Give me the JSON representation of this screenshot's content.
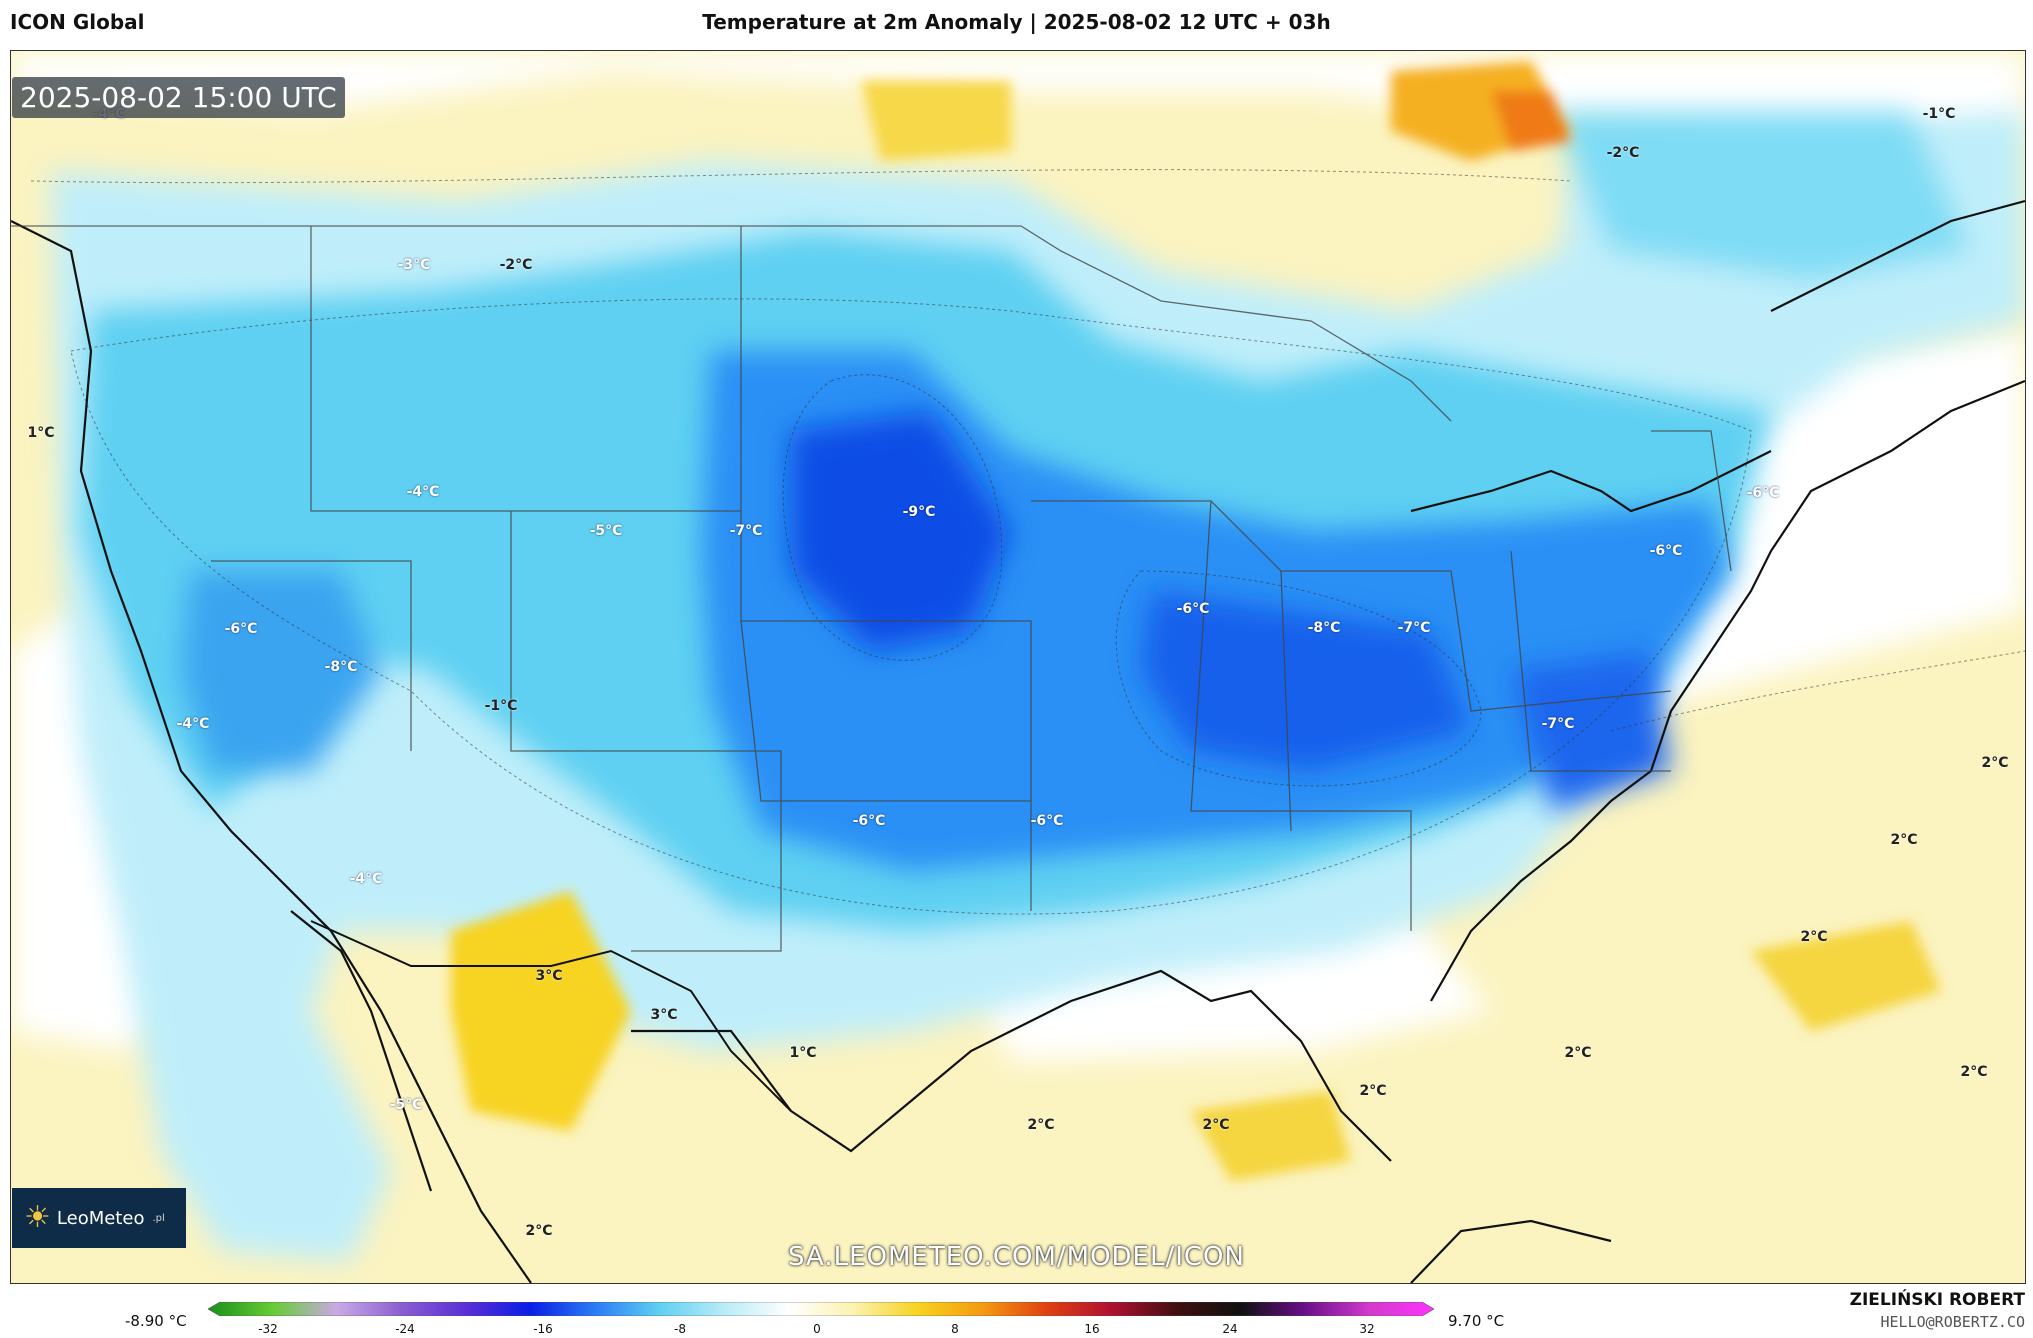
{
  "header": {
    "model": "ICON Global",
    "title": "Temperature at 2m Anomaly | 2025-08-02 12 UTC + 03h"
  },
  "map": {
    "timestamp": "2025-08-02 15:00 UTC",
    "labels": [
      {
        "text": "-4°C",
        "kind": "cold"
      },
      {
        "text": "-3°C",
        "kind": "cold"
      },
      {
        "text": "-2°C",
        "kind": "cool"
      },
      {
        "text": "1°C",
        "kind": "warm"
      },
      {
        "text": "-4°C",
        "kind": "cold"
      },
      {
        "text": "-5°C",
        "kind": "cold"
      },
      {
        "text": "-7°C",
        "kind": "cold"
      },
      {
        "text": "-9°C",
        "kind": "cold"
      },
      {
        "text": "-6°C",
        "kind": "cold"
      },
      {
        "text": "-8°C",
        "kind": "cold"
      },
      {
        "text": "-7°C",
        "kind": "cold"
      },
      {
        "text": "-6°C",
        "kind": "cold"
      },
      {
        "text": "-6°C",
        "kind": "cold"
      },
      {
        "text": "-6°C",
        "kind": "cold"
      },
      {
        "text": "-8°C",
        "kind": "cold"
      },
      {
        "text": "-1°C",
        "kind": "cool"
      },
      {
        "text": "-4°C",
        "kind": "cold"
      },
      {
        "text": "-7°C",
        "kind": "cold"
      },
      {
        "text": "-6°C",
        "kind": "cold"
      },
      {
        "text": "-6°C",
        "kind": "cold"
      },
      {
        "text": "-4°C",
        "kind": "cold"
      },
      {
        "text": "3°C",
        "kind": "warm"
      },
      {
        "text": "3°C",
        "kind": "warm"
      },
      {
        "text": "1°C",
        "kind": "warm"
      },
      {
        "text": "-1°C",
        "kind": "cool"
      },
      {
        "text": "-2°C",
        "kind": "cool"
      },
      {
        "text": "2°C",
        "kind": "warm"
      },
      {
        "text": "2°C",
        "kind": "warm"
      },
      {
        "text": "2°C",
        "kind": "warm"
      },
      {
        "text": "2°C",
        "kind": "warm"
      },
      {
        "text": "2°C",
        "kind": "warm"
      },
      {
        "text": "2°C",
        "kind": "warm"
      },
      {
        "text": "2°C",
        "kind": "warm"
      },
      {
        "text": "2°C",
        "kind": "warm"
      },
      {
        "text": "2°C",
        "kind": "warm"
      },
      {
        "text": "-5°C",
        "kind": "cold"
      }
    ]
  },
  "branding": {
    "logo_text": "LeoMeteo",
    "logo_suffix": ".pl",
    "watermark": "SA.LEOMETEO.COM/MODEL/ICON",
    "author": "ZIELIŃSKI ROBERT",
    "email": "HELLO@ROBERTZ.CO"
  },
  "legend": {
    "min_label": "-8.90 °C",
    "max_label": "9.70 °C",
    "ticks": [
      "-32",
      "-24",
      "-16",
      "-8",
      "0",
      "8",
      "16",
      "24",
      "32"
    ],
    "colors": [
      "#1a8f1a",
      "#66cc33",
      "#c9a9e6",
      "#8a5ed1",
      "#5a2fd6",
      "#0a1ee6",
      "#2a7cf5",
      "#5fd0f2",
      "#b9ecf7",
      "#ffffff",
      "#fcf2b0",
      "#f7d320",
      "#f59a10",
      "#e04010",
      "#b01030",
      "#401010",
      "#101010",
      "#6a0f8a",
      "#d23acb",
      "#ff33ff"
    ]
  }
}
